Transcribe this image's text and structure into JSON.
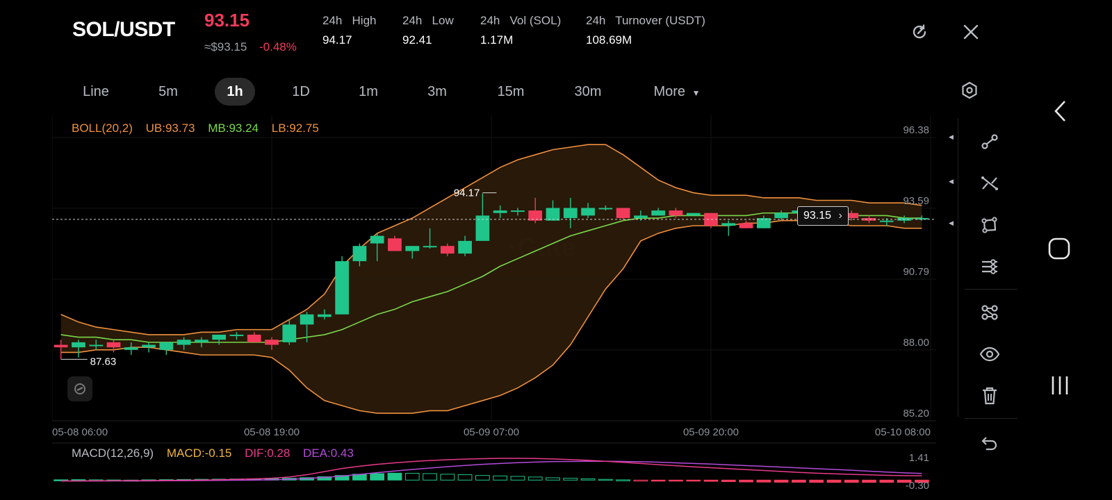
{
  "header": {
    "pair": "SOL/USDT",
    "price": "93.15",
    "approx": "≈$93.15",
    "change": "-0.48%",
    "stats": [
      {
        "label": "24h   High",
        "value": "94.17"
      },
      {
        "label": "24h   Low",
        "value": "92.41"
      },
      {
        "label": "24h   Vol (SOL)",
        "value": "1.17M"
      },
      {
        "label": "24h   Turnover (USDT)",
        "value": "108.69M"
      }
    ]
  },
  "timeframes": [
    "Line",
    "5m",
    "1h",
    "1D",
    "1m",
    "3m",
    "15m",
    "30m",
    "More"
  ],
  "active_timeframe": "1h",
  "indicators": {
    "boll": {
      "name": "BOLL(20,2)",
      "ub": "UB:93.73",
      "mb": "MB:93.24",
      "lb": "LB:92.75"
    },
    "macd": {
      "name": "MACD(12,26,9)",
      "macd": "MACD:-0.15",
      "dif": "DIF:0.28",
      "dea": "DEA:0.43"
    }
  },
  "axes": {
    "price_ticks": [
      "96.38",
      "93.59",
      "90.79",
      "88.00",
      "85.20"
    ],
    "time_ticks": [
      "05-08 06:00",
      "05-08 19:00",
      "05-09 07:00",
      "05-09 20:00",
      "05-10 08:00"
    ],
    "macd_ticks": [
      "1.41",
      "-0.30"
    ]
  },
  "annotations": {
    "high_marker": "94.17",
    "low_marker": "87.63",
    "last_price_tag": "93.15"
  },
  "colors": {
    "up": "#1fc58a",
    "down": "#f23b5b",
    "boll_bands": "#f0913e",
    "boll_mid": "#7ad94a",
    "dea": "#b44bd9",
    "dif": "#e83b8a"
  },
  "chart_data": {
    "type": "candlestick",
    "y_range": [
      85.2,
      96.38
    ],
    "candles": [
      {
        "o": 88.2,
        "h": 88.4,
        "l": 87.63,
        "c": 88.1
      },
      {
        "o": 88.1,
        "h": 88.4,
        "l": 87.7,
        "c": 88.3
      },
      {
        "o": 88.2,
        "h": 88.4,
        "l": 88.0,
        "c": 88.2
      },
      {
        "o": 88.3,
        "h": 88.4,
        "l": 87.9,
        "c": 88.1
      },
      {
        "o": 88.0,
        "h": 88.3,
        "l": 87.8,
        "c": 88.1
      },
      {
        "o": 88.1,
        "h": 88.3,
        "l": 87.9,
        "c": 88.2
      },
      {
        "o": 88.0,
        "h": 88.3,
        "l": 87.8,
        "c": 88.3
      },
      {
        "o": 88.2,
        "h": 88.5,
        "l": 88.0,
        "c": 88.4
      },
      {
        "o": 88.3,
        "h": 88.5,
        "l": 88.1,
        "c": 88.4
      },
      {
        "o": 88.4,
        "h": 88.6,
        "l": 88.2,
        "c": 88.6
      },
      {
        "o": 88.6,
        "h": 88.7,
        "l": 88.4,
        "c": 88.6
      },
      {
        "o": 88.6,
        "h": 88.7,
        "l": 88.3,
        "c": 88.3
      },
      {
        "o": 88.4,
        "h": 88.5,
        "l": 88.0,
        "c": 88.2
      },
      {
        "o": 88.3,
        "h": 89.2,
        "l": 88.2,
        "c": 89.0
      },
      {
        "o": 89.0,
        "h": 89.5,
        "l": 88.3,
        "c": 89.4
      },
      {
        "o": 89.3,
        "h": 89.6,
        "l": 89.2,
        "c": 89.4
      },
      {
        "o": 89.4,
        "h": 91.7,
        "l": 89.4,
        "c": 91.5
      },
      {
        "o": 91.5,
        "h": 92.2,
        "l": 91.3,
        "c": 92.1
      },
      {
        "o": 92.2,
        "h": 92.6,
        "l": 91.5,
        "c": 92.5
      },
      {
        "o": 92.4,
        "h": 92.5,
        "l": 91.9,
        "c": 91.9
      },
      {
        "o": 91.9,
        "h": 92.1,
        "l": 91.6,
        "c": 92.1
      },
      {
        "o": 92.1,
        "h": 92.8,
        "l": 92.0,
        "c": 92.1
      },
      {
        "o": 92.1,
        "h": 92.2,
        "l": 91.7,
        "c": 91.8
      },
      {
        "o": 91.8,
        "h": 92.5,
        "l": 91.7,
        "c": 92.3
      },
      {
        "o": 92.3,
        "h": 94.17,
        "l": 92.3,
        "c": 93.3
      },
      {
        "o": 93.4,
        "h": 93.7,
        "l": 93.2,
        "c": 93.5
      },
      {
        "o": 93.5,
        "h": 93.6,
        "l": 93.3,
        "c": 93.5
      },
      {
        "o": 93.5,
        "h": 94.0,
        "l": 93.0,
        "c": 93.1
      },
      {
        "o": 93.1,
        "h": 93.9,
        "l": 93.1,
        "c": 93.6
      },
      {
        "o": 93.2,
        "h": 94.0,
        "l": 92.8,
        "c": 93.6
      },
      {
        "o": 93.3,
        "h": 93.8,
        "l": 93.2,
        "c": 93.6
      },
      {
        "o": 93.6,
        "h": 93.7,
        "l": 93.5,
        "c": 93.6
      },
      {
        "o": 93.6,
        "h": 93.6,
        "l": 93.1,
        "c": 93.2
      },
      {
        "o": 93.2,
        "h": 93.5,
        "l": 93.1,
        "c": 93.3
      },
      {
        "o": 93.3,
        "h": 93.6,
        "l": 93.3,
        "c": 93.5
      },
      {
        "o": 93.5,
        "h": 93.6,
        "l": 93.2,
        "c": 93.3
      },
      {
        "o": 93.3,
        "h": 93.4,
        "l": 93.3,
        "c": 93.4
      },
      {
        "o": 93.4,
        "h": 93.4,
        "l": 92.8,
        "c": 92.9
      },
      {
        "o": 92.9,
        "h": 93.1,
        "l": 92.5,
        "c": 93.0
      },
      {
        "o": 93.0,
        "h": 93.1,
        "l": 92.8,
        "c": 92.8
      },
      {
        "o": 92.8,
        "h": 93.3,
        "l": 92.8,
        "c": 93.2
      },
      {
        "o": 93.2,
        "h": 93.5,
        "l": 93.1,
        "c": 93.4
      },
      {
        "o": 93.4,
        "h": 93.6,
        "l": 93.3,
        "c": 93.5
      },
      {
        "o": 93.5,
        "h": 93.6,
        "l": 93.3,
        "c": 93.4
      },
      {
        "o": 93.4,
        "h": 93.5,
        "l": 93.2,
        "c": 93.4
      },
      {
        "o": 93.4,
        "h": 93.5,
        "l": 93.1,
        "c": 93.2
      },
      {
        "o": 93.2,
        "h": 93.3,
        "l": 93.0,
        "c": 93.1
      },
      {
        "o": 93.1,
        "h": 93.2,
        "l": 92.9,
        "c": 93.1
      },
      {
        "o": 93.1,
        "h": 93.3,
        "l": 93.0,
        "c": 93.2
      },
      {
        "o": 93.2,
        "h": 93.3,
        "l": 93.1,
        "c": 93.2
      }
    ],
    "boll_upper": [
      89.4,
      89.1,
      88.9,
      88.8,
      88.7,
      88.6,
      88.6,
      88.6,
      88.7,
      88.7,
      88.8,
      88.8,
      88.8,
      89.2,
      89.6,
      90.2,
      91.3,
      92.0,
      92.6,
      92.9,
      93.2,
      93.6,
      94.0,
      94.4,
      94.8,
      95.2,
      95.5,
      95.7,
      95.9,
      96.0,
      96.1,
      96.1,
      95.7,
      95.2,
      94.7,
      94.4,
      94.2,
      94.1,
      94.1,
      94.1,
      94.0,
      94.0,
      94.0,
      93.9,
      93.9,
      93.9,
      93.8,
      93.8,
      93.8,
      93.7
    ],
    "boll_mid": [
      88.6,
      88.5,
      88.5,
      88.4,
      88.4,
      88.3,
      88.3,
      88.3,
      88.3,
      88.3,
      88.3,
      88.3,
      88.3,
      88.4,
      88.5,
      88.6,
      88.8,
      89.1,
      89.4,
      89.6,
      89.9,
      90.1,
      90.3,
      90.6,
      90.9,
      91.3,
      91.6,
      91.9,
      92.2,
      92.5,
      92.7,
      92.9,
      93.1,
      93.2,
      93.2,
      93.3,
      93.3,
      93.3,
      93.3,
      93.3,
      93.4,
      93.4,
      93.4,
      93.4,
      93.4,
      93.3,
      93.3,
      93.3,
      93.2,
      93.2
    ],
    "boll_lower": [
      87.9,
      87.9,
      88.0,
      88.0,
      88.1,
      88.1,
      88.0,
      87.9,
      87.8,
      87.8,
      87.8,
      87.8,
      87.7,
      87.2,
      86.5,
      86.0,
      85.8,
      85.6,
      85.5,
      85.5,
      85.5,
      85.6,
      85.6,
      85.8,
      86.0,
      86.2,
      86.5,
      86.9,
      87.4,
      88.2,
      89.3,
      90.4,
      91.2,
      92.3,
      92.6,
      92.8,
      92.9,
      92.9,
      92.9,
      93.0,
      93.0,
      93.1,
      93.1,
      93.1,
      93.0,
      92.9,
      92.9,
      92.9,
      92.8,
      92.8
    ],
    "macd_hist": [
      0.02,
      0.03,
      0.02,
      0.01,
      0.0,
      0.02,
      0.03,
      0.04,
      0.05,
      0.06,
      0.07,
      0.08,
      0.09,
      0.12,
      0.16,
      0.22,
      0.3,
      0.38,
      0.42,
      0.45,
      0.44,
      0.42,
      0.38,
      0.35,
      0.3,
      0.27,
      0.24,
      0.2,
      0.15,
      0.12,
      0.08,
      0.05,
      0.02,
      -0.01,
      -0.03,
      -0.05,
      -0.06,
      -0.08,
      -0.1,
      -0.12,
      -0.13,
      -0.14,
      -0.14,
      -0.15,
      -0.15,
      -0.15,
      -0.15,
      -0.15,
      -0.15,
      -0.15
    ],
    "dif": [
      -0.05,
      -0.05,
      -0.04,
      -0.04,
      -0.03,
      -0.03,
      -0.02,
      -0.01,
      0.0,
      0.02,
      0.05,
      0.08,
      0.12,
      0.2,
      0.35,
      0.55,
      0.75,
      0.9,
      1.02,
      1.12,
      1.2,
      1.27,
      1.32,
      1.36,
      1.39,
      1.41,
      1.41,
      1.4,
      1.37,
      1.33,
      1.28,
      1.22,
      1.15,
      1.08,
      1.0,
      0.93,
      0.86,
      0.8,
      0.74,
      0.68,
      0.62,
      0.56,
      0.5,
      0.45,
      0.41,
      0.37,
      0.34,
      0.31,
      0.29,
      0.28
    ],
    "dea": [
      -0.06,
      -0.06,
      -0.06,
      -0.05,
      -0.05,
      -0.05,
      -0.04,
      -0.04,
      -0.03,
      -0.02,
      -0.01,
      0.0,
      0.02,
      0.05,
      0.1,
      0.17,
      0.26,
      0.37,
      0.48,
      0.59,
      0.69,
      0.78,
      0.87,
      0.95,
      1.02,
      1.08,
      1.13,
      1.17,
      1.2,
      1.21,
      1.22,
      1.22,
      1.21,
      1.19,
      1.16,
      1.12,
      1.08,
      1.04,
      0.99,
      0.94,
      0.89,
      0.84,
      0.79,
      0.74,
      0.69,
      0.64,
      0.58,
      0.52,
      0.47,
      0.43
    ],
    "macd_range": [
      -0.3,
      1.41
    ]
  }
}
